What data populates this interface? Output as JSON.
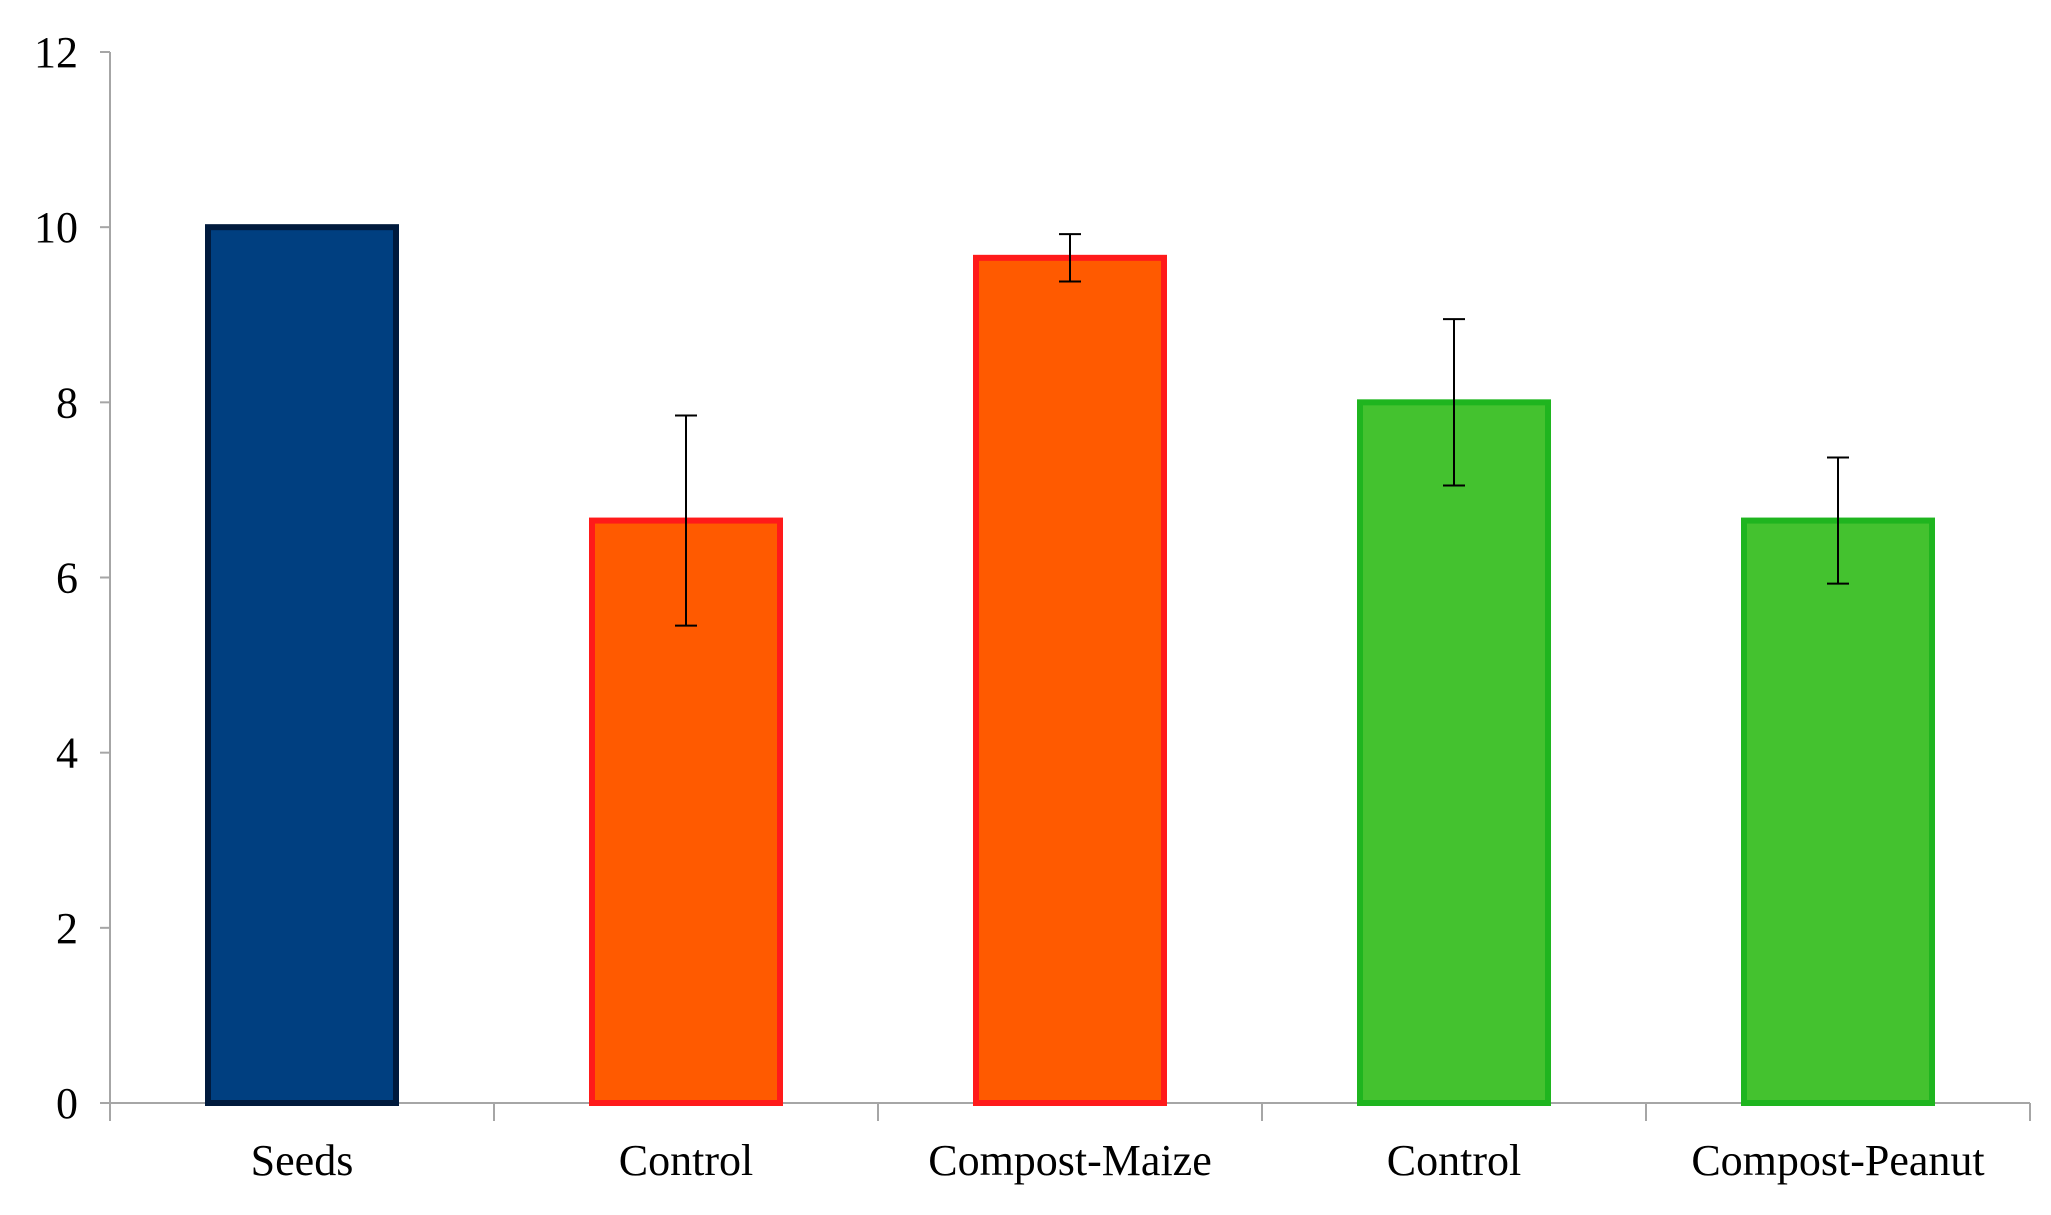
{
  "chart_data": {
    "type": "bar",
    "title": "",
    "xlabel": "",
    "ylabel": "",
    "ylim": [
      0,
      12
    ],
    "yticks": [
      0,
      2,
      4,
      6,
      8,
      10,
      12
    ],
    "grid": false,
    "legend": "none",
    "categories": [
      "Seeds",
      "Control",
      "Compost-Maize",
      "Control",
      "Compost-Peanut"
    ],
    "values": [
      10.0,
      6.65,
      9.65,
      8.0,
      6.65
    ],
    "errors": [
      0,
      1.2,
      0.27,
      0.95,
      0.72
    ],
    "bar_fill_colors": [
      "#003f80",
      "#ff5a00",
      "#ff5a00",
      "#44c22f",
      "#44c22f"
    ],
    "bar_edge_colors": [
      "#001a3d",
      "#ff1a1a",
      "#ff1a1a",
      "#1fb51f",
      "#1fb51f"
    ]
  }
}
